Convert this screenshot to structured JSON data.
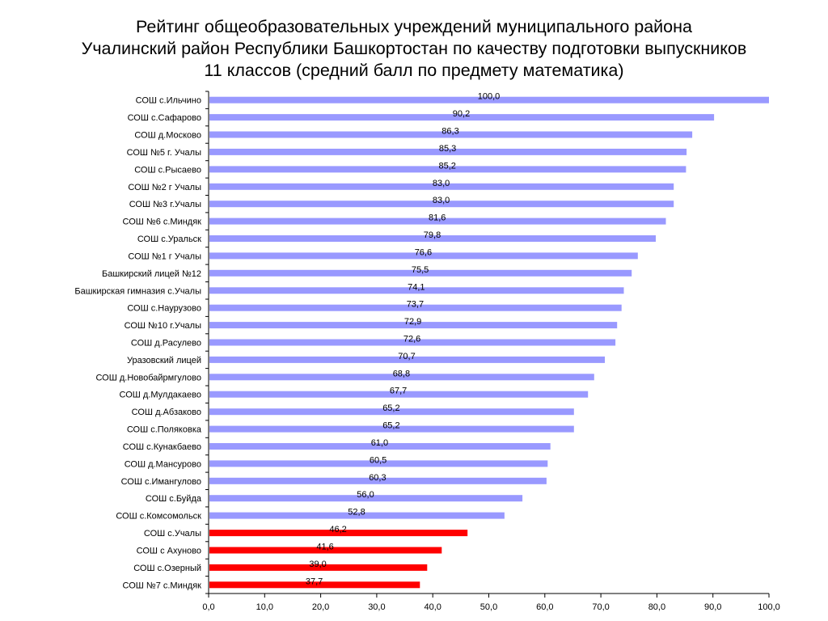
{
  "chart_data": {
    "type": "bar",
    "orientation": "horizontal",
    "title_lines": [
      "Рейтинг общеобразовательных учреждений муниципального района",
      "Учалинский район Республики Башкортостан по качеству подготовки выпускников",
      "11 классов (средний балл по предмету математика)"
    ],
    "categories": [
      "СОШ с.Ильчино",
      "СОШ с.Сафарово",
      "СОШ д.Москово",
      "СОШ №5  г. Учалы",
      "СОШ с.Рысаево",
      "СОШ №2 г Учалы",
      "СОШ №3 г.Учалы",
      "СОШ №6  с.Миндяк",
      "СОШ с.Уральск",
      "СОШ №1 г Учалы",
      "Башкирский лицей №12",
      "Башкирская гимназия с.Учалы",
      "СОШ с.Наурузово",
      "СОШ №10 г.Учалы",
      "СОШ д.Расулево",
      "Уразовский лицей",
      "СОШ д.Новобайрмгулово",
      "СОШ д.Мулдакаево",
      "СОШ д.Абзаково",
      "СОШ с.Поляковка",
      "СОШ с.Кунакбаево",
      "СОШ д.Мансурово",
      "СОШ с.Имангулово",
      "СОШ с.Буйда",
      "СОШ с.Комсомольск",
      "СОШ с.Учалы",
      "СОШ  с Ахуново",
      "СОШ с.Озерный",
      "СОШ №7 с.Миндяк"
    ],
    "values": [
      100.0,
      90.2,
      86.3,
      85.3,
      85.2,
      83.0,
      83.0,
      81.6,
      79.8,
      76.6,
      75.5,
      74.1,
      73.7,
      72.9,
      72.6,
      70.7,
      68.8,
      67.7,
      65.2,
      65.2,
      61.0,
      60.5,
      60.3,
      56.0,
      52.8,
      46.2,
      41.6,
      39.0,
      37.7
    ],
    "value_labels": [
      "100,0",
      "90,2",
      "86,3",
      "85,3",
      "85,2",
      "83,0",
      "83,0",
      "81,6",
      "79,8",
      "76,6",
      "75,5",
      "74,1",
      "73,7",
      "72,9",
      "72,6",
      "70,7",
      "68,8",
      "67,7",
      "65,2",
      "65,2",
      "61,0",
      "60,5",
      "60,3",
      "56,0",
      "52,8",
      "46,2",
      "41,6",
      "39,0",
      "37,7"
    ],
    "highlight_from_index": 25,
    "colors": {
      "normal": "#9999ff",
      "highlight": "#ff0000",
      "axis": "#000000"
    },
    "xlim": [
      0,
      100
    ],
    "xticks": [
      0,
      10,
      20,
      30,
      40,
      50,
      60,
      70,
      80,
      90,
      100
    ],
    "xtick_labels": [
      "0,0",
      "10,0",
      "20,0",
      "30,0",
      "40,0",
      "50,0",
      "60,0",
      "70,0",
      "80,0",
      "90,0",
      "100,0"
    ],
    "grid": false,
    "legend": "none"
  }
}
